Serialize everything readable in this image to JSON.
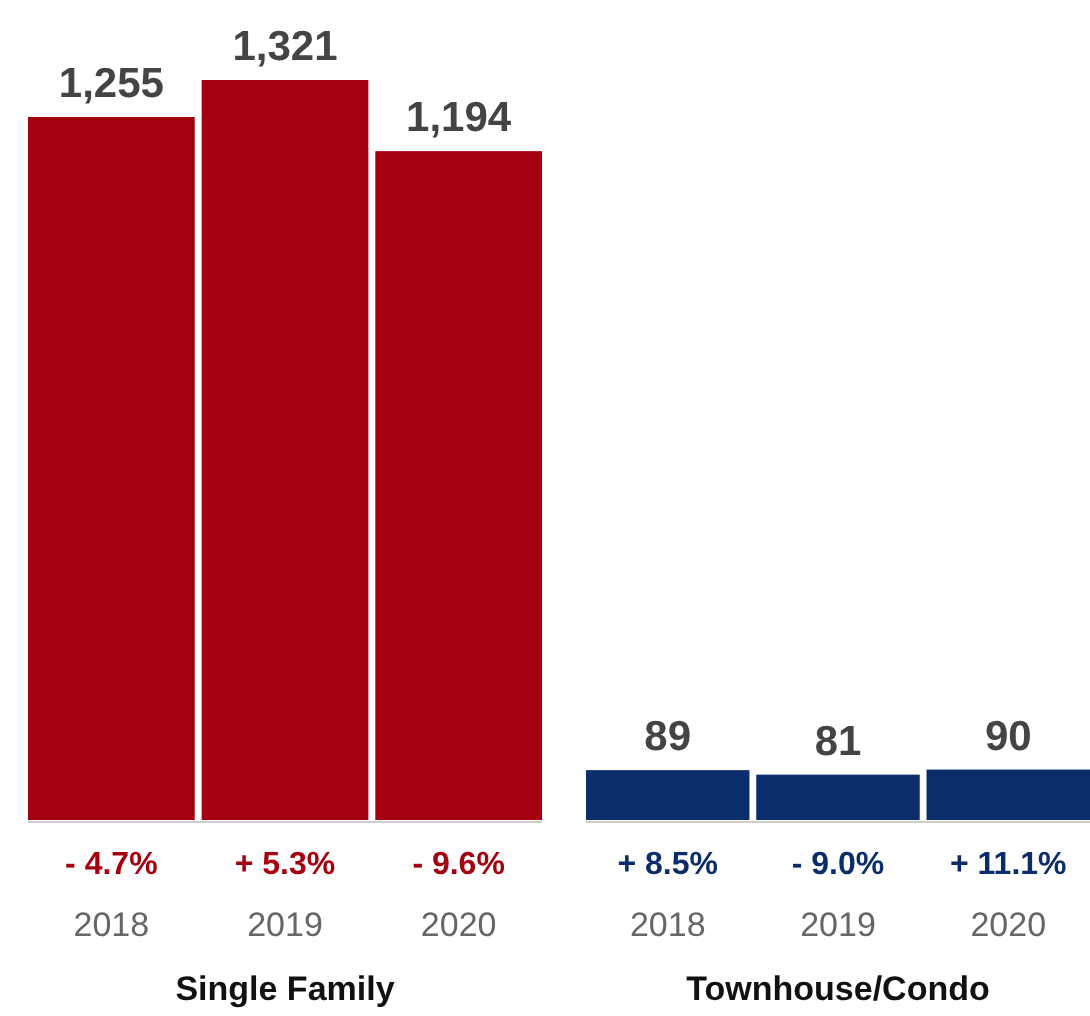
{
  "chart_data": [
    {
      "type": "bar",
      "xlabel": "Single Family",
      "categories": [
        "2018",
        "2019",
        "2020"
      ],
      "values": [
        1255,
        1321,
        1194
      ],
      "value_labels": [
        "1,255",
        "1,321",
        "1,194"
      ],
      "color": "#a5000f",
      "annotations": [
        "- 4.7%",
        "+ 5.3%",
        "- 9.6%"
      ]
    },
    {
      "type": "bar",
      "xlabel": "Townhouse/Condo",
      "categories": [
        "2018",
        "2019",
        "2020"
      ],
      "values": [
        89,
        81,
        90
      ],
      "value_labels": [
        "89",
        "81",
        "90"
      ],
      "color": "#0b2d6b",
      "annotations": [
        "+ 8.5%",
        "- 9.0%",
        "+ 11.1%"
      ]
    }
  ]
}
